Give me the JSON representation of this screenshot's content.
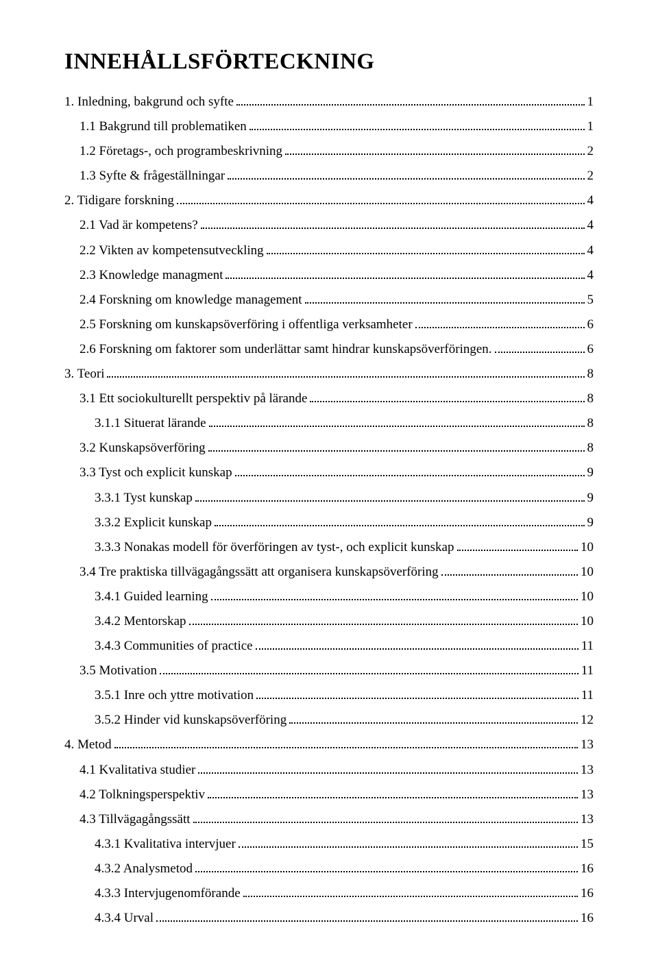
{
  "title": "INNEHÅLLSFÖRTECKNING",
  "toc": [
    {
      "indent": 0,
      "label": "1. Inledning, bakgrund och syfte",
      "page": "1"
    },
    {
      "indent": 1,
      "label": "1.1 Bakgrund till problematiken",
      "page": "1"
    },
    {
      "indent": 1,
      "label": "1.2 Företags-, och programbeskrivning",
      "page": "2"
    },
    {
      "indent": 1,
      "label": "1.3 Syfte & frågeställningar",
      "page": "2"
    },
    {
      "indent": 0,
      "label": "2. Tidigare forskning",
      "page": "4"
    },
    {
      "indent": 1,
      "label": "2.1 Vad är kompetens?",
      "page": "4"
    },
    {
      "indent": 1,
      "label": "2.2 Vikten av kompetensutveckling",
      "page": "4"
    },
    {
      "indent": 1,
      "label": "2.3 Knowledge managment",
      "page": "4"
    },
    {
      "indent": 1,
      "label": "2.4 Forskning om knowledge management",
      "page": "5"
    },
    {
      "indent": 1,
      "label": "2.5 Forskning om kunskapsöverföring i offentliga verksamheter",
      "page": "6"
    },
    {
      "indent": 1,
      "label": "2.6 Forskning om faktorer som underlättar samt hindrar kunskapsöverföringen.",
      "page": "6"
    },
    {
      "indent": 0,
      "label": "3. Teori",
      "page": "8"
    },
    {
      "indent": 1,
      "label": "3.1 Ett sociokulturellt perspektiv på lärande",
      "page": "8"
    },
    {
      "indent": 2,
      "label": "3.1.1 Situerat lärande",
      "page": "8"
    },
    {
      "indent": 1,
      "label": "3.2 Kunskapsöverföring",
      "page": "8"
    },
    {
      "indent": 1,
      "label": "3.3 Tyst och explicit kunskap",
      "page": "9"
    },
    {
      "indent": 2,
      "label": "3.3.1 Tyst kunskap",
      "page": "9"
    },
    {
      "indent": 2,
      "label": "3.3.2 Explicit kunskap",
      "page": "9"
    },
    {
      "indent": 2,
      "label": "3.3.3 Nonakas modell för överföringen av tyst-, och explicit kunskap",
      "page": "10"
    },
    {
      "indent": 1,
      "label": "3.4 Tre praktiska tillvägagångssätt att organisera kunskapsöverföring",
      "page": "10"
    },
    {
      "indent": 2,
      "label": "3.4.1 Guided learning",
      "page": "10"
    },
    {
      "indent": 2,
      "label": "3.4.2 Mentorskap",
      "page": "10"
    },
    {
      "indent": 2,
      "label": "3.4.3 Communities of practice",
      "page": "11"
    },
    {
      "indent": 1,
      "label": "3.5 Motivation",
      "page": "11"
    },
    {
      "indent": 2,
      "label": "3.5.1 Inre och yttre motivation",
      "page": "11"
    },
    {
      "indent": 2,
      "label": "3.5.2 Hinder vid kunskapsöverföring",
      "page": "12"
    },
    {
      "indent": 0,
      "label": "4. Metod",
      "page": "13"
    },
    {
      "indent": 1,
      "label": "4.1 Kvalitativa studier",
      "page": "13"
    },
    {
      "indent": 1,
      "label": "4.2 Tolkningsperspektiv",
      "page": "13"
    },
    {
      "indent": 1,
      "label": "4.3 Tillvägagångssätt",
      "page": "13"
    },
    {
      "indent": 2,
      "label": "4.3.1 Kvalitativa intervjuer",
      "page": "15"
    },
    {
      "indent": 2,
      "label": "4.3.2 Analysmetod",
      "page": "16"
    },
    {
      "indent": 2,
      "label": "4.3.3 Intervjugenomförande",
      "page": "16"
    },
    {
      "indent": 2,
      "label": "4.3.4 Urval",
      "page": "16"
    }
  ]
}
